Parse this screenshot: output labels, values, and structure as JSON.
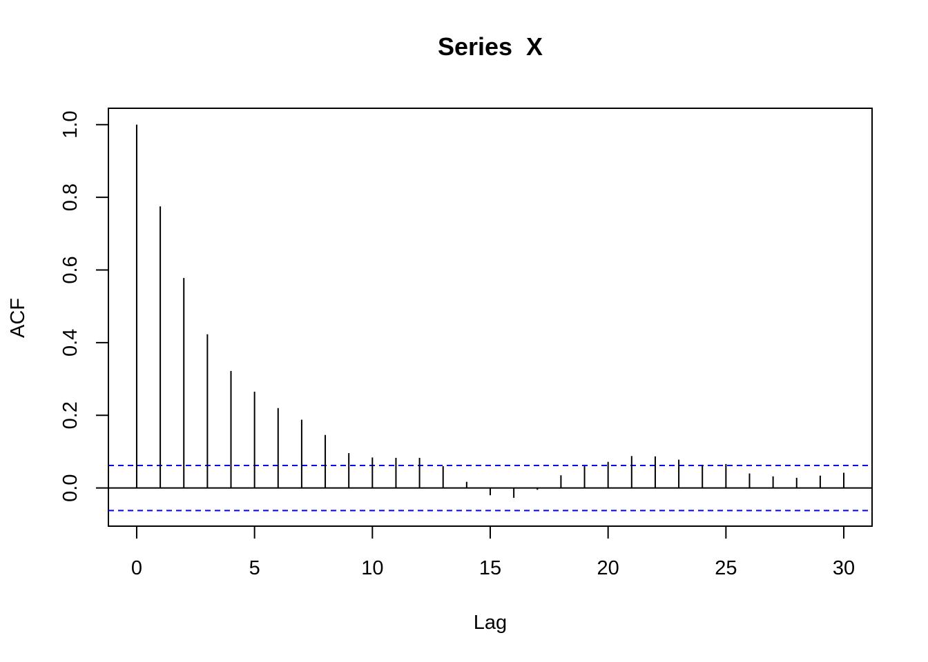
{
  "chart_data": {
    "type": "bar",
    "title": "Series  X",
    "xlabel": "Lag",
    "ylabel": "ACF",
    "xlim": [
      -1.2,
      31.2
    ],
    "ylim": [
      -0.105,
      1.045
    ],
    "x_ticks": [
      0,
      5,
      10,
      15,
      20,
      25,
      30
    ],
    "x_tick_labels": [
      "0",
      "5",
      "10",
      "15",
      "20",
      "25",
      "30"
    ],
    "y_ticks": [
      0.0,
      0.2,
      0.4,
      0.6,
      0.8,
      1.0
    ],
    "y_tick_labels": [
      "0.0",
      "0.2",
      "0.4",
      "0.6",
      "0.8",
      "1.0"
    ],
    "grid": false,
    "lags": [
      0,
      1,
      2,
      3,
      4,
      5,
      6,
      7,
      8,
      9,
      10,
      11,
      12,
      13,
      14,
      15,
      16,
      17,
      18,
      19,
      20,
      21,
      22,
      23,
      24,
      25,
      26,
      27,
      28,
      29,
      30
    ],
    "acf": [
      1.0,
      0.775,
      0.578,
      0.423,
      0.322,
      0.265,
      0.22,
      0.188,
      0.146,
      0.096,
      0.084,
      0.083,
      0.083,
      0.06,
      0.017,
      -0.02,
      -0.027,
      -0.005,
      0.035,
      0.06,
      0.072,
      0.088,
      0.087,
      0.078,
      0.062,
      0.066,
      0.04,
      0.032,
      0.028,
      0.034,
      0.042
    ],
    "confidence_bound": 0.062,
    "bar_color": "#000000",
    "bound_color": "#0000ff"
  }
}
